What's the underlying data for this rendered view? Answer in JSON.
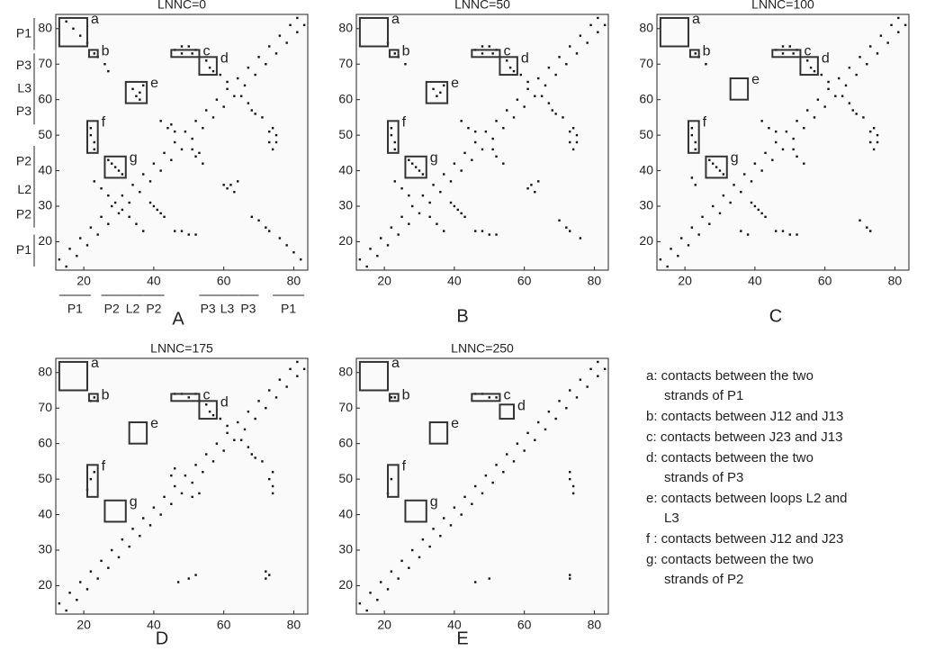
{
  "chart_data": [
    {
      "type": "scatter",
      "title": "LNNC=0",
      "panel_label": "A",
      "x": [
        13,
        16,
        19,
        22,
        25,
        28,
        31,
        34,
        37,
        40,
        43,
        46,
        49,
        52,
        55,
        58,
        61,
        64,
        67,
        70,
        73,
        76,
        79,
        81,
        15,
        17,
        19,
        21,
        23,
        24,
        26,
        27,
        46,
        48,
        50,
        52,
        48,
        51,
        55,
        56,
        57,
        59,
        61,
        34,
        35,
        36,
        37,
        36,
        22,
        22,
        23,
        23,
        27,
        28,
        29,
        30,
        31,
        42,
        44,
        46,
        45,
        25,
        23,
        27,
        29
      ],
      "y": [
        15,
        18,
        21,
        24,
        27,
        30,
        33,
        36,
        39,
        42,
        45,
        48,
        51,
        54,
        57,
        60,
        63,
        66,
        69,
        72,
        75,
        78,
        81,
        83,
        82,
        80,
        78,
        76,
        73,
        72,
        70,
        68,
        74,
        75,
        75,
        74,
        73,
        73,
        71,
        69,
        68,
        67,
        65,
        63,
        61,
        62,
        64,
        60,
        52,
        50,
        48,
        46,
        43,
        42,
        41,
        40,
        39,
        54,
        52,
        51,
        53,
        35,
        37,
        33,
        31
      ],
      "xlim": [
        12,
        84
      ],
      "ylim": [
        12,
        84
      ],
      "xticks": [
        20,
        40,
        60,
        80
      ],
      "yticks": [
        20,
        30,
        40,
        50,
        60,
        70,
        80
      ],
      "regions": [
        {
          "label": "a",
          "x": [
            13,
            21
          ],
          "y": [
            75,
            83
          ]
        },
        {
          "label": "b",
          "x": [
            21.5,
            24
          ],
          "y": [
            72,
            74
          ]
        },
        {
          "label": "c",
          "x": [
            45,
            53
          ],
          "y": [
            72,
            74
          ]
        },
        {
          "label": "d",
          "x": [
            53,
            58
          ],
          "y": [
            67,
            72
          ]
        },
        {
          "label": "e",
          "x": [
            32,
            38
          ],
          "y": [
            59,
            65
          ]
        },
        {
          "label": "f",
          "x": [
            21,
            24
          ],
          "y": [
            45,
            54
          ]
        },
        {
          "label": "g",
          "x": [
            26,
            32
          ],
          "y": [
            38,
            44
          ]
        }
      ],
      "y_segments": [
        {
          "label": "P1",
          "range": [
            74,
            83
          ]
        },
        {
          "label": "P3",
          "range": [
            66,
            73
          ]
        },
        {
          "label": "L3",
          "range": [
            60,
            66
          ]
        },
        {
          "label": "P3",
          "range": [
            53,
            60
          ]
        },
        {
          "label": "P2",
          "range": [
            38,
            47
          ]
        },
        {
          "label": "L2",
          "range": [
            31,
            38
          ]
        },
        {
          "label": "P2",
          "range": [
            24,
            31
          ]
        },
        {
          "label": "P1",
          "range": [
            13,
            22
          ]
        }
      ],
      "x_segments": [
        {
          "label": "P1",
          "range": [
            13,
            22
          ]
        },
        {
          "label": "P2",
          "range": [
            25,
            31
          ]
        },
        {
          "label": "L2",
          "range": [
            31,
            37
          ]
        },
        {
          "label": "P2",
          "range": [
            37,
            43
          ]
        },
        {
          "label": "P3",
          "range": [
            53,
            58
          ]
        },
        {
          "label": "L3",
          "range": [
            58,
            64
          ]
        },
        {
          "label": "P3",
          "range": [
            64,
            70
          ]
        },
        {
          "label": "P1",
          "range": [
            74,
            83
          ]
        }
      ]
    },
    {
      "type": "scatter",
      "title": "LNNC=50",
      "panel_label": "B",
      "x": [
        13,
        16,
        19,
        22,
        25,
        28,
        31,
        34,
        37,
        40,
        43,
        46,
        49,
        52,
        55,
        58,
        61,
        64,
        67,
        70,
        73,
        76,
        79,
        81,
        21,
        23,
        24,
        26,
        46,
        48,
        50,
        52,
        48,
        51,
        55,
        56,
        57,
        59,
        61,
        34,
        35,
        36,
        37,
        22,
        22,
        23,
        23,
        27,
        28,
        29,
        30,
        31,
        42,
        44,
        46,
        25,
        23,
        27
      ],
      "y": [
        15,
        18,
        21,
        24,
        27,
        30,
        33,
        36,
        39,
        42,
        45,
        48,
        51,
        54,
        57,
        60,
        63,
        66,
        69,
        72,
        75,
        78,
        81,
        83,
        76,
        73,
        72,
        70,
        74,
        75,
        75,
        74,
        73,
        73,
        71,
        69,
        68,
        67,
        65,
        63,
        61,
        62,
        64,
        52,
        50,
        48,
        46,
        43,
        42,
        41,
        40,
        39,
        54,
        52,
        51,
        35,
        37,
        33
      ],
      "xlim": [
        12,
        84
      ],
      "ylim": [
        12,
        84
      ],
      "xticks": [
        20,
        40,
        60,
        80
      ],
      "yticks": [
        20,
        30,
        40,
        50,
        60,
        70,
        80
      ],
      "regions": [
        {
          "label": "a",
          "x": [
            13,
            21
          ],
          "y": [
            75,
            83
          ]
        },
        {
          "label": "b",
          "x": [
            21.5,
            24
          ],
          "y": [
            72,
            74
          ]
        },
        {
          "label": "c",
          "x": [
            45,
            53
          ],
          "y": [
            72,
            74
          ]
        },
        {
          "label": "d",
          "x": [
            53,
            58
          ],
          "y": [
            67,
            72
          ]
        },
        {
          "label": "e",
          "x": [
            32,
            38
          ],
          "y": [
            59,
            65
          ]
        },
        {
          "label": "f",
          "x": [
            21,
            24
          ],
          "y": [
            45,
            54
          ]
        },
        {
          "label": "g",
          "x": [
            26,
            32
          ],
          "y": [
            38,
            44
          ]
        }
      ]
    },
    {
      "type": "scatter",
      "title": "LNNC=100",
      "panel_label": "C",
      "x": [
        13,
        16,
        19,
        22,
        25,
        28,
        31,
        34,
        37,
        40,
        43,
        46,
        49,
        52,
        55,
        58,
        61,
        64,
        67,
        70,
        73,
        76,
        79,
        81,
        23,
        24,
        26,
        46,
        48,
        50,
        52,
        48,
        51,
        55,
        56,
        57,
        59,
        61,
        22,
        22,
        23,
        23,
        27,
        28,
        29,
        30,
        31,
        42,
        44,
        46,
        22,
        23
      ],
      "y": [
        15,
        18,
        21,
        24,
        27,
        30,
        33,
        36,
        39,
        42,
        45,
        48,
        51,
        54,
        57,
        60,
        63,
        66,
        69,
        72,
        75,
        78,
        81,
        83,
        73,
        72,
        70,
        74,
        75,
        75,
        74,
        73,
        73,
        71,
        69,
        68,
        67,
        65,
        52,
        50,
        48,
        46,
        43,
        42,
        41,
        40,
        39,
        54,
        52,
        51,
        38,
        36
      ],
      "xlim": [
        12,
        84
      ],
      "ylim": [
        12,
        84
      ],
      "xticks": [
        20,
        40,
        60,
        80
      ],
      "yticks": [
        20,
        30,
        40,
        50,
        60,
        70,
        80
      ],
      "regions": [
        {
          "label": "a",
          "x": [
            13,
            21
          ],
          "y": [
            75,
            83
          ]
        },
        {
          "label": "b",
          "x": [
            21.5,
            24
          ],
          "y": [
            72,
            74
          ]
        },
        {
          "label": "c",
          "x": [
            45,
            53
          ],
          "y": [
            72,
            74
          ]
        },
        {
          "label": "d",
          "x": [
            53,
            58
          ],
          "y": [
            67,
            72
          ]
        },
        {
          "label": "e",
          "x": [
            33,
            38
          ],
          "y": [
            60,
            66
          ]
        },
        {
          "label": "f",
          "x": [
            21,
            24
          ],
          "y": [
            45,
            54
          ]
        },
        {
          "label": "g",
          "x": [
            26,
            32
          ],
          "y": [
            38,
            44
          ]
        }
      ]
    },
    {
      "type": "scatter",
      "title": "LNNC=175",
      "panel_label": "D",
      "x": [
        13,
        16,
        19,
        22,
        25,
        28,
        31,
        34,
        37,
        40,
        43,
        46,
        49,
        52,
        55,
        58,
        61,
        64,
        67,
        70,
        73,
        76,
        79,
        81,
        23,
        24,
        46,
        48,
        50,
        52,
        55,
        56,
        57,
        59,
        61,
        22,
        23,
        45,
        46,
        21,
        22
      ],
      "y": [
        15,
        18,
        21,
        24,
        27,
        30,
        33,
        36,
        39,
        42,
        45,
        48,
        51,
        54,
        57,
        60,
        63,
        66,
        69,
        72,
        75,
        78,
        81,
        83,
        73,
        72,
        74,
        74,
        73,
        74,
        71,
        69,
        68,
        67,
        65,
        50,
        52,
        51,
        53,
        47,
        72
      ],
      "xlim": [
        12,
        84
      ],
      "ylim": [
        12,
        84
      ],
      "xticks": [
        20,
        40,
        60,
        80
      ],
      "yticks": [
        20,
        30,
        40,
        50,
        60,
        70,
        80
      ],
      "regions": [
        {
          "label": "a",
          "x": [
            13,
            21
          ],
          "y": [
            75,
            83
          ]
        },
        {
          "label": "b",
          "x": [
            21.5,
            24
          ],
          "y": [
            72,
            74
          ]
        },
        {
          "label": "c",
          "x": [
            45,
            53
          ],
          "y": [
            72,
            74
          ]
        },
        {
          "label": "d",
          "x": [
            53,
            58
          ],
          "y": [
            67,
            72
          ]
        },
        {
          "label": "e",
          "x": [
            33,
            38
          ],
          "y": [
            60,
            66
          ]
        },
        {
          "label": "f",
          "x": [
            21,
            24
          ],
          "y": [
            45,
            54
          ]
        },
        {
          "label": "g",
          "x": [
            26,
            32
          ],
          "y": [
            38,
            44
          ]
        }
      ]
    },
    {
      "type": "scatter",
      "title": "LNNC=250",
      "panel_label": "E",
      "x": [
        13,
        16,
        19,
        22,
        25,
        28,
        31,
        34,
        37,
        40,
        43,
        46,
        49,
        52,
        55,
        58,
        61,
        64,
        67,
        70,
        73,
        76,
        79,
        81,
        23,
        46,
        48,
        50,
        52,
        22,
        21,
        22
      ],
      "y": [
        15,
        18,
        21,
        24,
        27,
        30,
        33,
        36,
        39,
        42,
        45,
        48,
        51,
        54,
        57,
        60,
        63,
        66,
        69,
        72,
        75,
        78,
        81,
        83,
        73,
        74,
        74,
        73,
        73,
        50,
        46,
        73
      ],
      "xlim": [
        12,
        84
      ],
      "ylim": [
        12,
        84
      ],
      "xticks": [
        20,
        40,
        60,
        80
      ],
      "yticks": [
        20,
        30,
        40,
        50,
        60,
        70,
        80
      ],
      "regions": [
        {
          "label": "a",
          "x": [
            13,
            21
          ],
          "y": [
            75,
            83
          ]
        },
        {
          "label": "b",
          "x": [
            21.5,
            24
          ],
          "y": [
            72,
            74
          ]
        },
        {
          "label": "c",
          "x": [
            45,
            53
          ],
          "y": [
            72,
            74
          ]
        },
        {
          "label": "d",
          "x": [
            53,
            57
          ],
          "y": [
            67,
            71
          ]
        },
        {
          "label": "e",
          "x": [
            33,
            38
          ],
          "y": [
            60,
            66
          ]
        },
        {
          "label": "f",
          "x": [
            21,
            24
          ],
          "y": [
            45,
            54
          ]
        },
        {
          "label": "g",
          "x": [
            26,
            32
          ],
          "y": [
            38,
            44
          ]
        }
      ]
    }
  ],
  "notes": [
    {
      "lines": [
        "a: contacts between the two",
        "strands of P1"
      ]
    },
    {
      "lines": [
        "b: contacts between J12 and J13"
      ]
    },
    {
      "lines": [
        "c: contacts between J23 and J13"
      ]
    },
    {
      "lines": [
        "d: contacts between the two",
        "strands of P3"
      ]
    },
    {
      "lines": [
        "e: contacts between loops L2 and",
        "L3"
      ]
    },
    {
      "lines": [
        "f : contacts between J12 and J23"
      ]
    },
    {
      "lines": [
        "g: contacts between the two",
        "strands of P2"
      ]
    }
  ]
}
